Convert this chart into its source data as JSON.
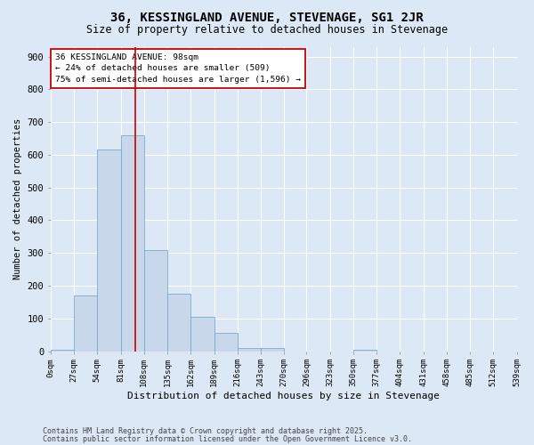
{
  "title": "36, KESSINGLAND AVENUE, STEVENAGE, SG1 2JR",
  "subtitle": "Size of property relative to detached houses in Stevenage",
  "xlabel": "Distribution of detached houses by size in Stevenage",
  "ylabel": "Number of detached properties",
  "bin_edges": [
    0,
    27,
    54,
    81,
    108,
    135,
    162,
    189,
    216,
    243,
    270,
    296,
    323,
    350,
    377,
    404,
    431,
    458,
    485,
    512,
    539
  ],
  "bar_heights": [
    5,
    170,
    615,
    660,
    310,
    175,
    105,
    55,
    10,
    10,
    0,
    0,
    0,
    5,
    0,
    0,
    0,
    0,
    0,
    0
  ],
  "bar_color": "#c8d8ea",
  "bar_edge_color": "#7aaac8",
  "bg_color": "#dce8f5",
  "grid_color": "#ffffff",
  "vline_x": 98,
  "vline_color": "#cc0000",
  "annotation_text": "36 KESSINGLAND AVENUE: 98sqm\n← 24% of detached houses are smaller (509)\n75% of semi-detached houses are larger (1,596) →",
  "annotation_box_color": "#ffffff",
  "annotation_box_edge": "#cc0000",
  "ylim": [
    0,
    930
  ],
  "yticks": [
    0,
    100,
    200,
    300,
    400,
    500,
    600,
    700,
    800,
    900
  ],
  "footnote1": "Contains HM Land Registry data © Crown copyright and database right 2025.",
  "footnote2": "Contains public sector information licensed under the Open Government Licence v3.0."
}
